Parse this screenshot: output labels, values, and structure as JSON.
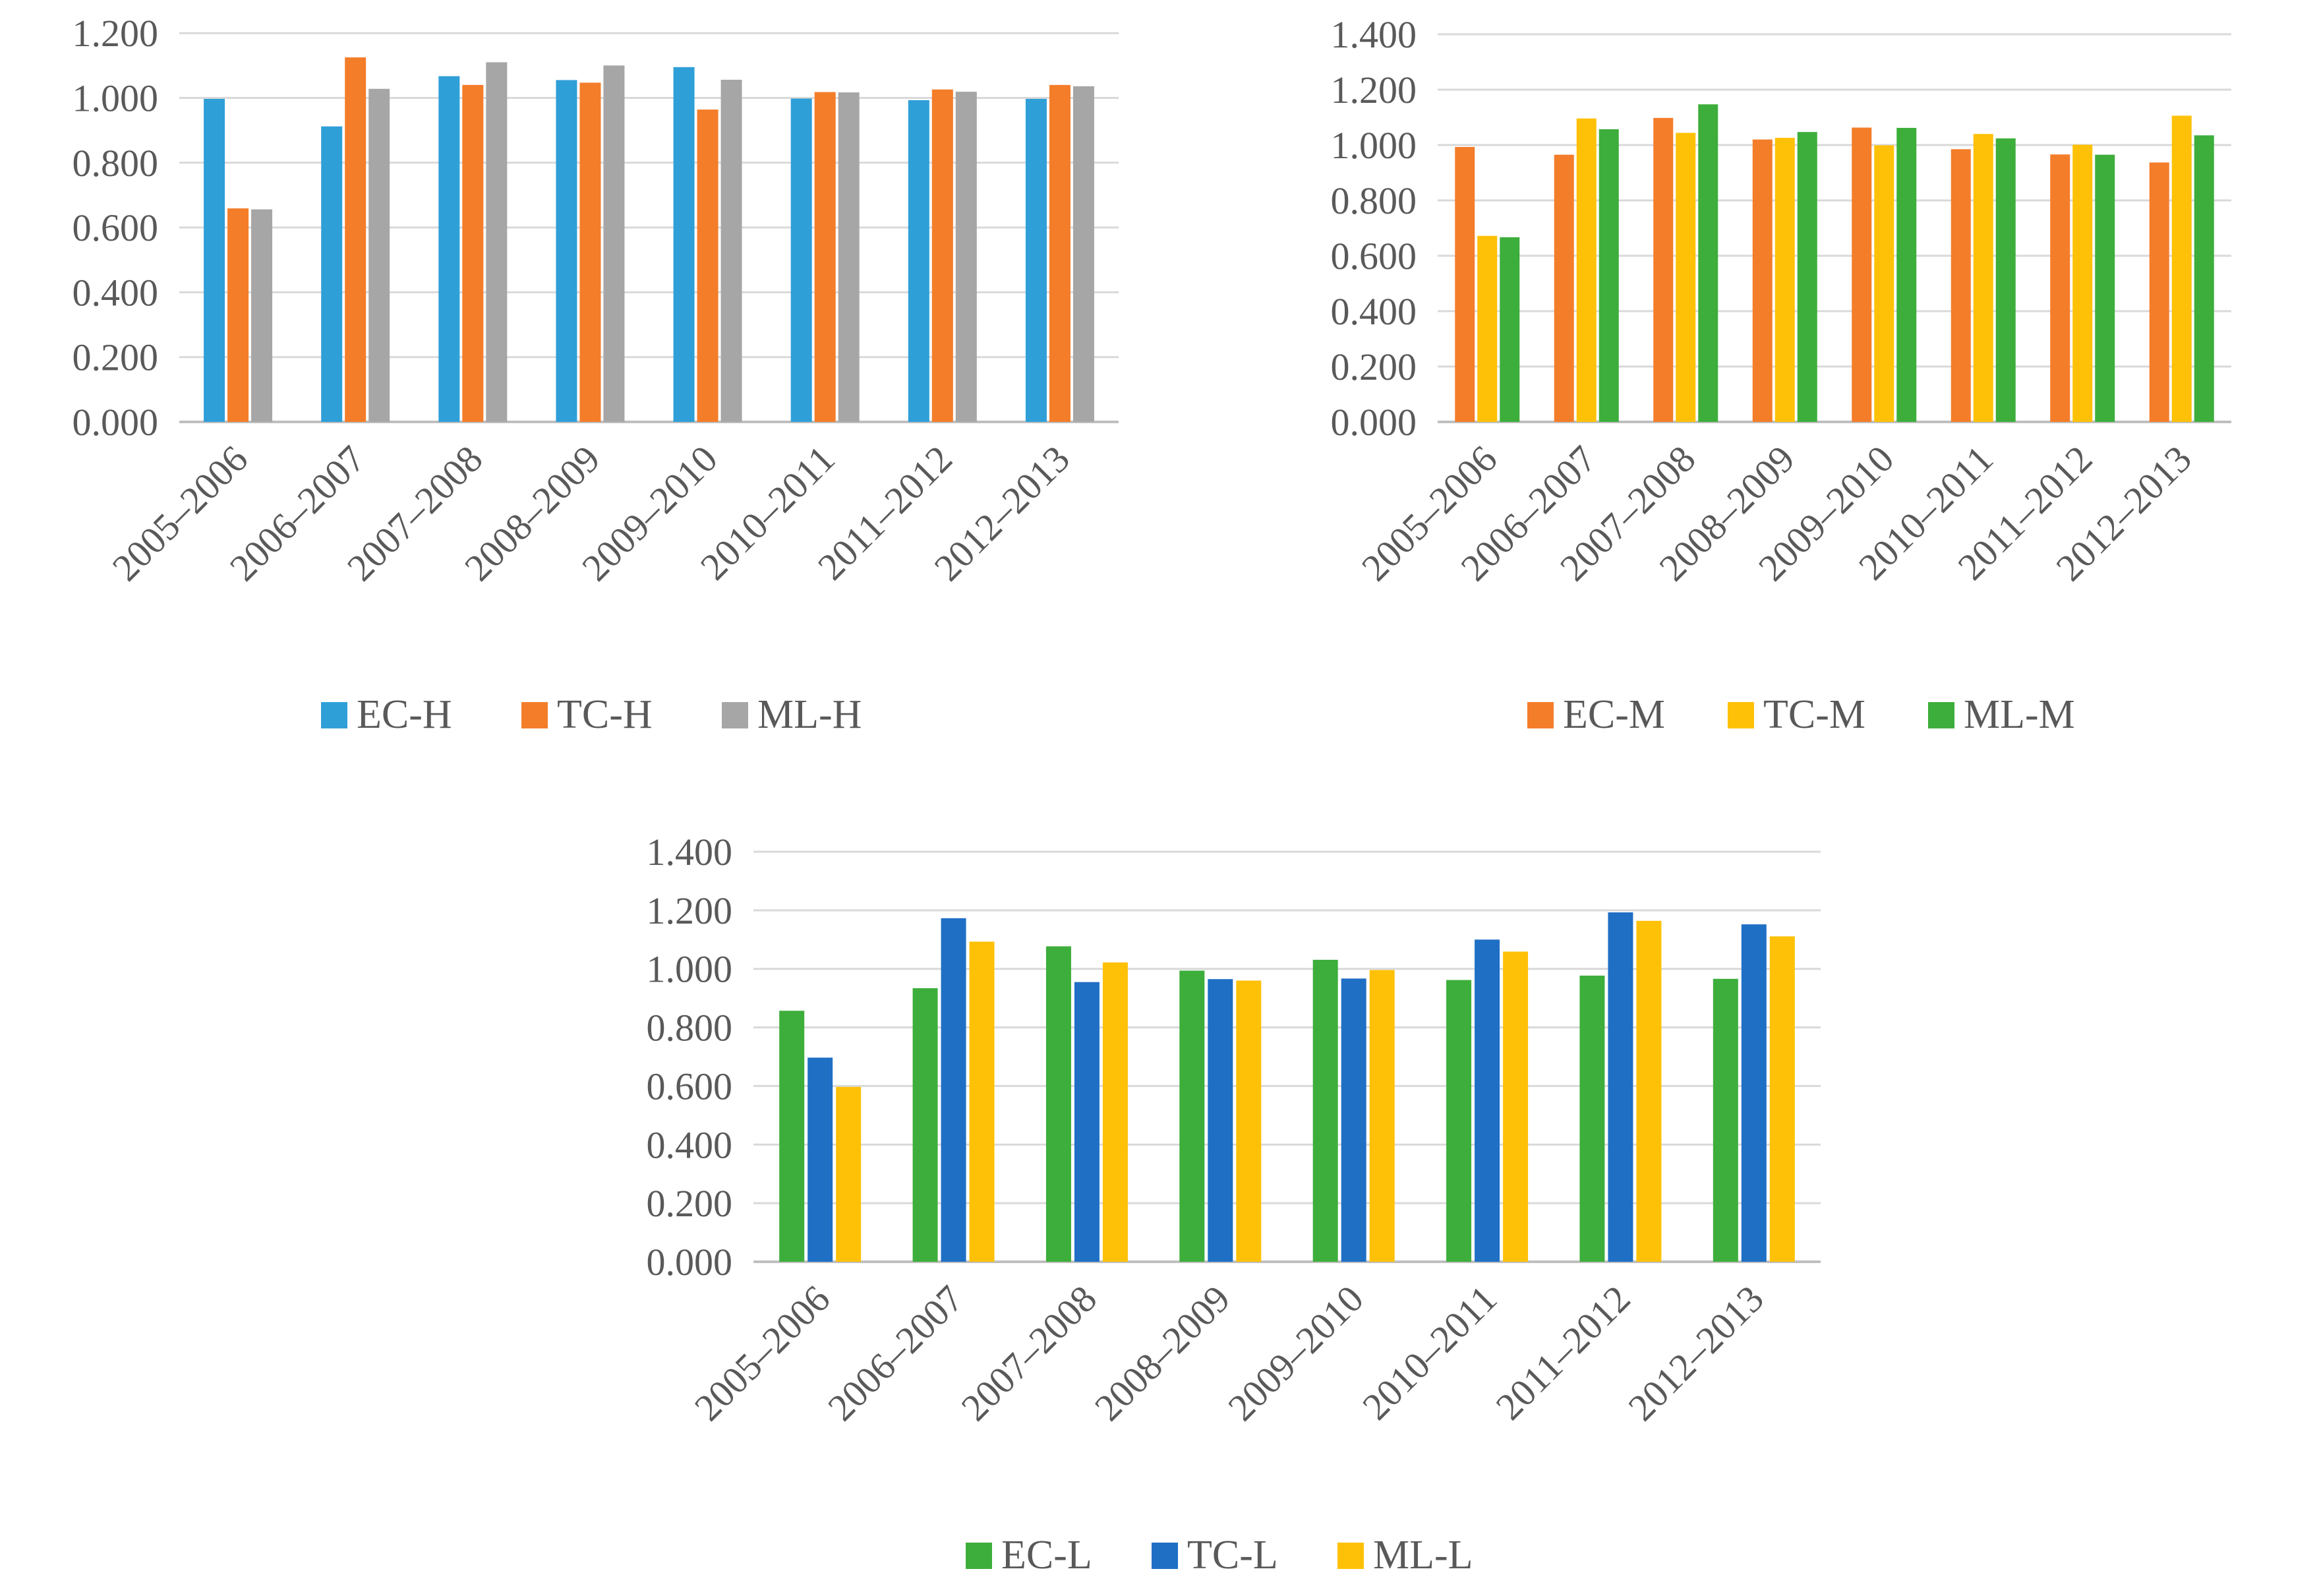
{
  "chart_data": [
    {
      "type": "bar",
      "id": "high",
      "categories": [
        "2005–2006",
        "2006–2007",
        "2007–2008",
        "2008–2009",
        "2009–2010",
        "2010–2011",
        "2011–2012",
        "2012–2013"
      ],
      "series": [
        {
          "name": "EC-H",
          "color": "#2F9FD8",
          "values": [
            0.997,
            0.912,
            1.067,
            1.055,
            1.095,
            0.998,
            0.993,
            0.997
          ]
        },
        {
          "name": "TC-H",
          "color": "#F47D2A",
          "values": [
            0.659,
            1.125,
            1.04,
            1.047,
            0.964,
            1.018,
            1.026,
            1.04
          ]
        },
        {
          "name": "ML-H",
          "color": "#A6A6A6",
          "values": [
            0.656,
            1.028,
            1.11,
            1.1,
            1.056,
            1.017,
            1.019,
            1.036
          ]
        }
      ],
      "ylim": [
        0,
        1.2
      ],
      "yticks": [
        "0.000",
        "0.200",
        "0.400",
        "0.600",
        "0.800",
        "1.000",
        "1.200"
      ],
      "title": "",
      "xlabel": "",
      "ylabel": "",
      "legend_position": "bottom"
    },
    {
      "type": "bar",
      "id": "medium",
      "categories": [
        "2005–2006",
        "2006–2007",
        "2007–2008",
        "2008–2009",
        "2009–2010",
        "2010–2011",
        "2011–2012",
        "2012–2013"
      ],
      "series": [
        {
          "name": "EC-M",
          "color": "#F47D2A",
          "values": [
            0.993,
            0.965,
            1.098,
            1.02,
            1.063,
            0.985,
            0.966,
            0.937
          ]
        },
        {
          "name": "TC-M",
          "color": "#FFC107",
          "values": [
            0.672,
            1.096,
            1.044,
            1.026,
            0.999,
            1.04,
            1.001,
            1.106
          ]
        },
        {
          "name": "ML-M",
          "color": "#3DAE3B",
          "values": [
            0.667,
            1.057,
            1.147,
            1.047,
            1.062,
            1.024,
            0.965,
            1.035
          ]
        }
      ],
      "ylim": [
        0,
        1.4
      ],
      "yticks": [
        "0.000",
        "0.200",
        "0.400",
        "0.600",
        "0.800",
        "1.000",
        "1.200",
        "1.400"
      ],
      "title": "",
      "xlabel": "",
      "ylabel": "",
      "legend_position": "bottom"
    },
    {
      "type": "bar",
      "id": "low",
      "categories": [
        "2005–2006",
        "2006–2007",
        "2007–2008",
        "2008–2009",
        "2009–2010",
        "2010–2011",
        "2011–2012",
        "2012–2013"
      ],
      "series": [
        {
          "name": "EC-L",
          "color": "#3DAE3B",
          "values": [
            0.857,
            0.934,
            1.077,
            0.994,
            1.031,
            0.962,
            0.977,
            0.966
          ]
        },
        {
          "name": "TC-L",
          "color": "#1F6FC5",
          "values": [
            0.697,
            1.173,
            0.955,
            0.965,
            0.967,
            1.1,
            1.193,
            1.152
          ]
        },
        {
          "name": "ML-L",
          "color": "#FFC107",
          "values": [
            0.597,
            1.093,
            1.022,
            0.96,
            0.996,
            1.059,
            1.164,
            1.111
          ]
        }
      ],
      "ylim": [
        0,
        1.4
      ],
      "yticks": [
        "0.000",
        "0.200",
        "0.400",
        "0.600",
        "0.800",
        "1.000",
        "1.200",
        "1.400"
      ],
      "title": "",
      "xlabel": "",
      "ylabel": "",
      "legend_position": "bottom"
    }
  ]
}
